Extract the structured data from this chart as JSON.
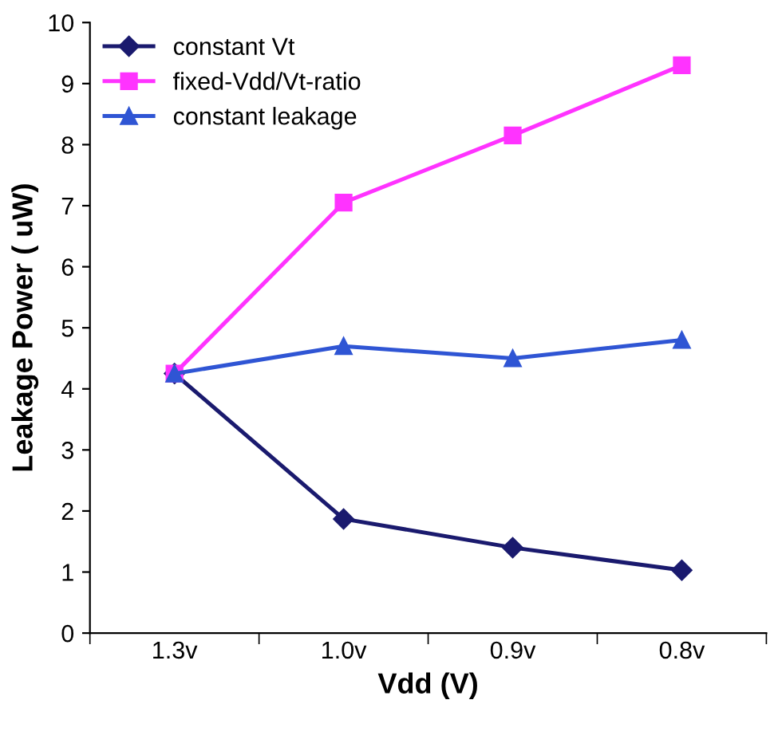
{
  "chart_data": {
    "type": "line",
    "xlabel": "Vdd (V)",
    "ylabel": "Leakage Power ( uW)",
    "categories": [
      "1.3v",
      "1.0v",
      "0.9v",
      "0.8v"
    ],
    "series": [
      {
        "name": "constant Vt",
        "color": "#1a1a6e",
        "marker": "diamond",
        "values": [
          4.25,
          1.87,
          1.4,
          1.03
        ]
      },
      {
        "name": "fixed-Vdd/Vt-ratio",
        "color": "#ff33ff",
        "marker": "square",
        "values": [
          4.25,
          7.05,
          8.15,
          9.3
        ]
      },
      {
        "name": "constant leakage",
        "color": "#2f55d4",
        "marker": "triangle",
        "values": [
          4.25,
          4.7,
          4.5,
          4.8
        ]
      }
    ],
    "ylim": [
      0,
      10
    ],
    "yticks": [
      0,
      1,
      2,
      3,
      4,
      5,
      6,
      7,
      8,
      9,
      10
    ],
    "grid": false,
    "legend": "top left",
    "line_style": "solid"
  }
}
